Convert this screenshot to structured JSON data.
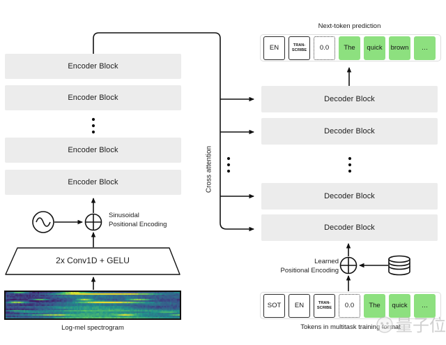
{
  "colors": {
    "token_green": "#8de07f",
    "block_bg": "#ececec",
    "line": "#111111",
    "container_border": "#dddddd"
  },
  "encoder": {
    "blocks": [
      "Encoder Block",
      "Encoder Block",
      "Encoder Block",
      "Encoder Block"
    ],
    "pos_enc_line1": "Sinusoidal",
    "pos_enc_line2": "Positional Encoding",
    "conv_label": "2x Conv1D + GELU",
    "spectrogram_caption": "Log-mel spectrogram"
  },
  "decoder": {
    "blocks": [
      "Decoder Block",
      "Decoder Block",
      "Decoder Block",
      "Decoder Block"
    ],
    "pos_enc_line1": "Learned",
    "pos_enc_line2": "Positional Encoding",
    "tokens_caption": "Tokens in multitask training format"
  },
  "cross_attention": {
    "label": "Cross attention"
  },
  "next_token": {
    "label": "Next-token prediction"
  },
  "top_tokens": [
    {
      "label": "EN",
      "type": "outline"
    },
    {
      "label": "TRAN-SCRIBE",
      "type": "outline tiny"
    },
    {
      "label": "0.0",
      "type": "dotted"
    },
    {
      "label": "The",
      "type": "green"
    },
    {
      "label": "quick",
      "type": "green"
    },
    {
      "label": "brown",
      "type": "green"
    },
    {
      "label": "…",
      "type": "green"
    }
  ],
  "bottom_tokens": [
    {
      "label": "SOT",
      "type": "outline"
    },
    {
      "label": "EN",
      "type": "outline"
    },
    {
      "label": "TRAN-SCRIBE",
      "type": "outline tiny"
    },
    {
      "label": "0.0",
      "type": "dotted"
    },
    {
      "label": "The",
      "type": "green"
    },
    {
      "label": "quick",
      "type": "green"
    },
    {
      "label": "…",
      "type": "green"
    }
  ],
  "watermark": {
    "text": "量子位"
  }
}
